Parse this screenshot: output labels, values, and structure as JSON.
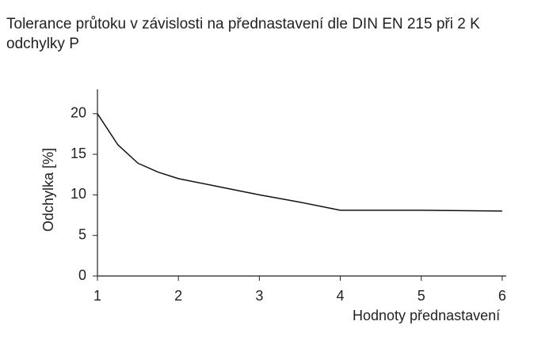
{
  "chart_data": {
    "type": "line",
    "title": "Tolerance průtoku v závislosti na přednastavení dle DIN EN 215 při 2 K odchylky P",
    "x_label": "Hodnoty přednastavení",
    "y_label": "Odchylka [%]",
    "x": [
      1,
      1.25,
      1.5,
      1.75,
      2,
      2.5,
      3,
      3.5,
      4,
      5,
      6
    ],
    "series": [
      {
        "name": "Odchylka",
        "color": "#111111",
        "values": [
          20,
          16.2,
          13.9,
          12.8,
          12,
          11,
          10,
          9.1,
          8.1,
          8.1,
          8.0
        ]
      }
    ],
    "xlim": [
      1,
      6.05
    ],
    "ylim": [
      0,
      23
    ],
    "xticks": [
      1,
      2,
      3,
      4,
      5,
      6
    ],
    "yticks": [
      0,
      5,
      10,
      15,
      20
    ],
    "grid": false
  }
}
